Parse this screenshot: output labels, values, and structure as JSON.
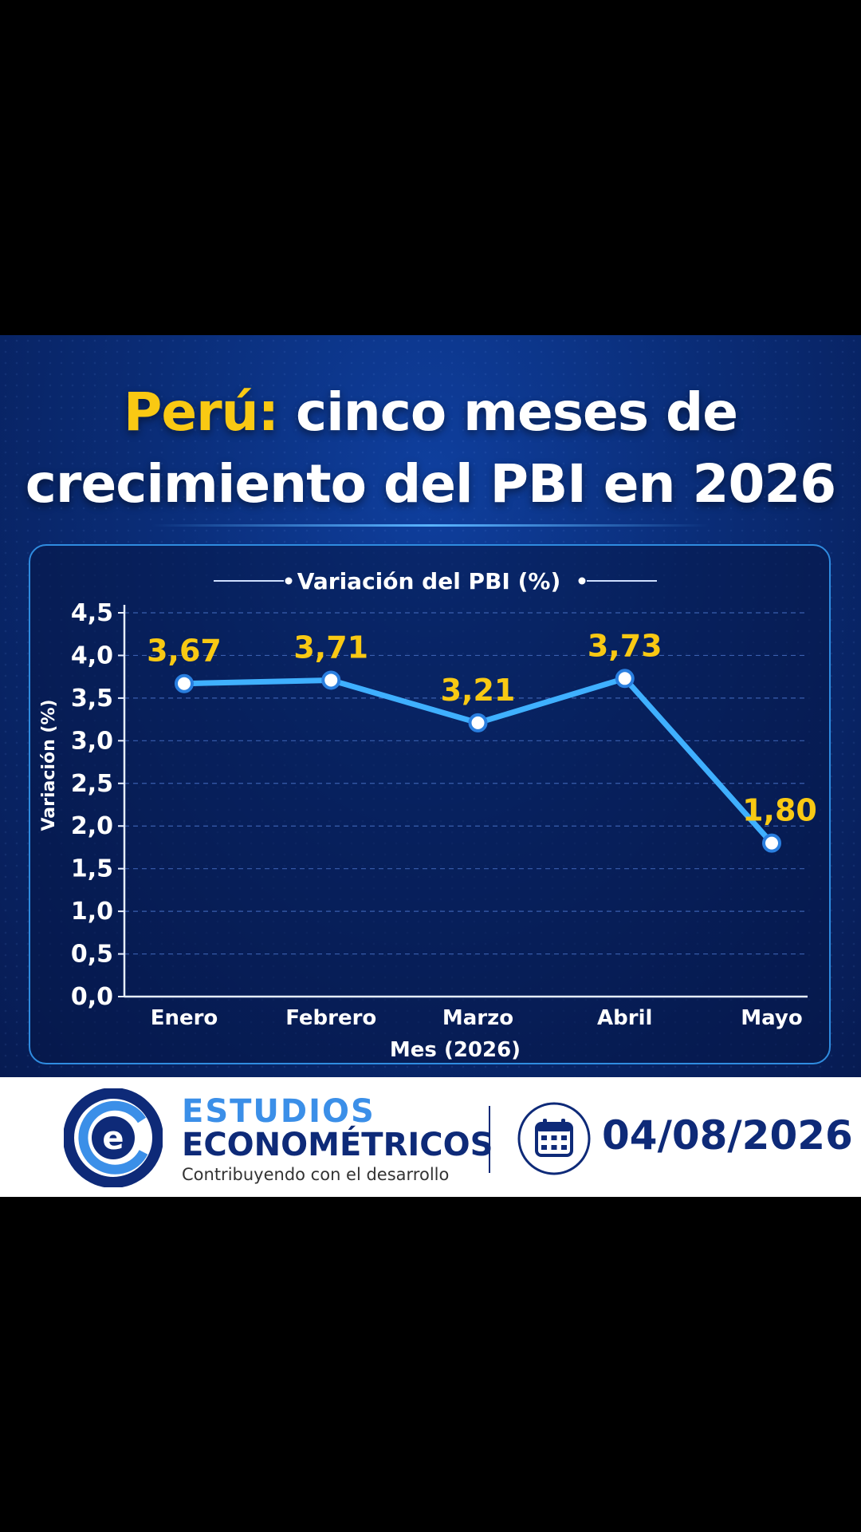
{
  "headline": {
    "line1_highlight": "Perú:",
    "line1_rest": " cinco meses de",
    "line2": "crecimiento del PBI en 2026"
  },
  "colors": {
    "highlight": "#f9c913",
    "line": "#3fb0ff",
    "label": "#f9c913",
    "navy": "#0e2a78"
  },
  "chart_data": {
    "type": "line",
    "legend": "Variación del PBI (%)",
    "categories": [
      "Enero",
      "Febrero",
      "Marzo",
      "Abril",
      "Mayo"
    ],
    "values": [
      3.67,
      3.71,
      3.21,
      3.73,
      1.8
    ],
    "data_labels": [
      "3,67",
      "3,71",
      "3,21",
      "3,73",
      "1,80"
    ],
    "xlabel": "Mes (2026)",
    "ylabel": "Variación (%)",
    "ylim": [
      0,
      4.5
    ],
    "yticks": [
      "0,0",
      "0,5",
      "1,0",
      "1,5",
      "2,0",
      "2,5",
      "3,0",
      "3,5",
      "4,0",
      "4,5"
    ],
    "grid": true
  },
  "footer": {
    "brand_line1": "ESTUDIOS",
    "brand_line2": "ECONOMÉTRICOS",
    "tagline": "Contribuyendo con el desarrollo",
    "date": "04/08/2026",
    "logo_icon": "e-logo-icon",
    "date_icon": "calendar-icon"
  }
}
